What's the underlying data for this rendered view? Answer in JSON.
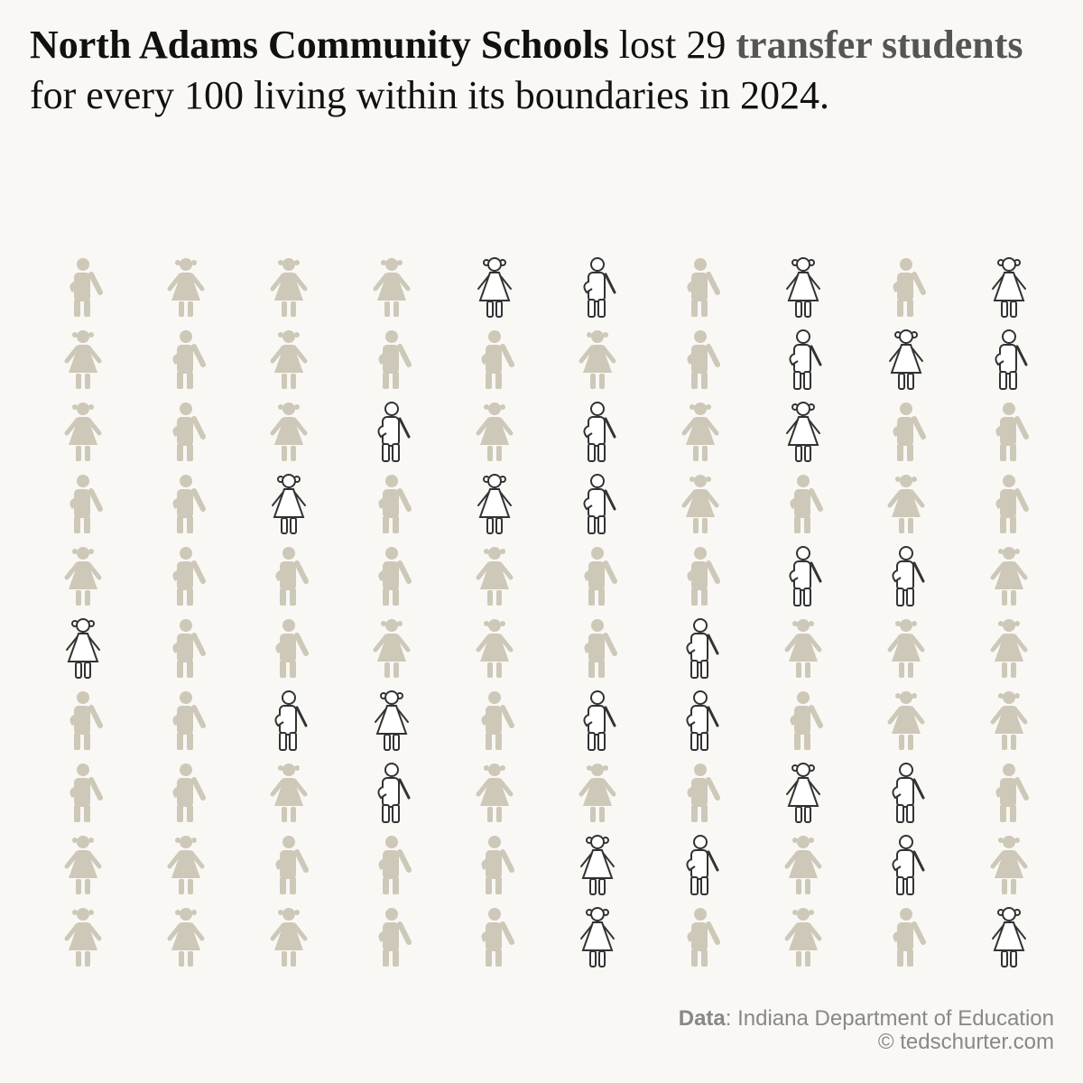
{
  "chart_data": {
    "type": "pictogram",
    "title": [
      {
        "text": "North Adams Community Schools",
        "style": "bold"
      },
      {
        "text": " lost 29 "
      },
      {
        "text": "transfer students",
        "style": "bold-gray"
      },
      {
        "text": "  for every 100 living within its boundaries in 2024."
      }
    ],
    "value": 29,
    "total": 100,
    "figures": [
      "bgggGBbGbG",
      "gbgbbgbBGB",
      "gbgBgBgGbb",
      "bbGbGBgbgb",
      "gbbbgbbBBg",
      "GbbggbBggg",
      "bbBGbBBbgg",
      "bbgBggbGBb",
      "ggbbbGBgBg",
      "gggbbGbgbG"
    ],
    "color": "#cdc8b8",
    "highlight_color": "#333333",
    "source": {
      "label": "Data",
      "text": ": Indiana Department of Education"
    },
    "credit": "© tedschurter.com"
  }
}
